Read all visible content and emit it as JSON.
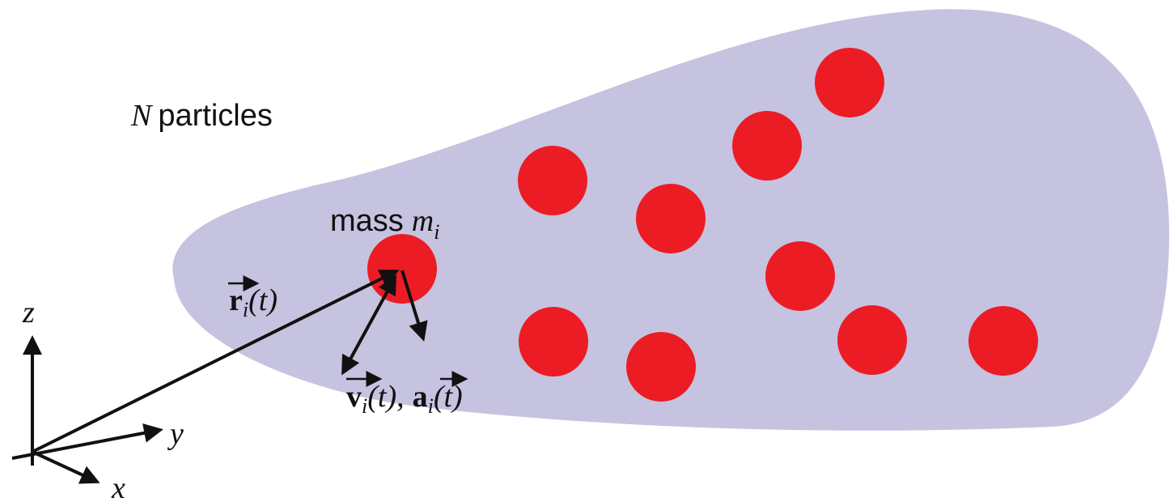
{
  "title": {
    "symbol": "N",
    "text": "particles"
  },
  "mass": {
    "text": "mass",
    "symbol": "m",
    "index": "i"
  },
  "position": {
    "symbol": "r",
    "index": "i",
    "arg": "(t)"
  },
  "velocity": {
    "symbol": "v",
    "index": "i",
    "arg": "(t)",
    "separator": ","
  },
  "acceleration": {
    "symbol": "a",
    "index": "i",
    "arg": "(t)"
  },
  "axes": {
    "x": "x",
    "y": "y",
    "z": "z"
  }
}
